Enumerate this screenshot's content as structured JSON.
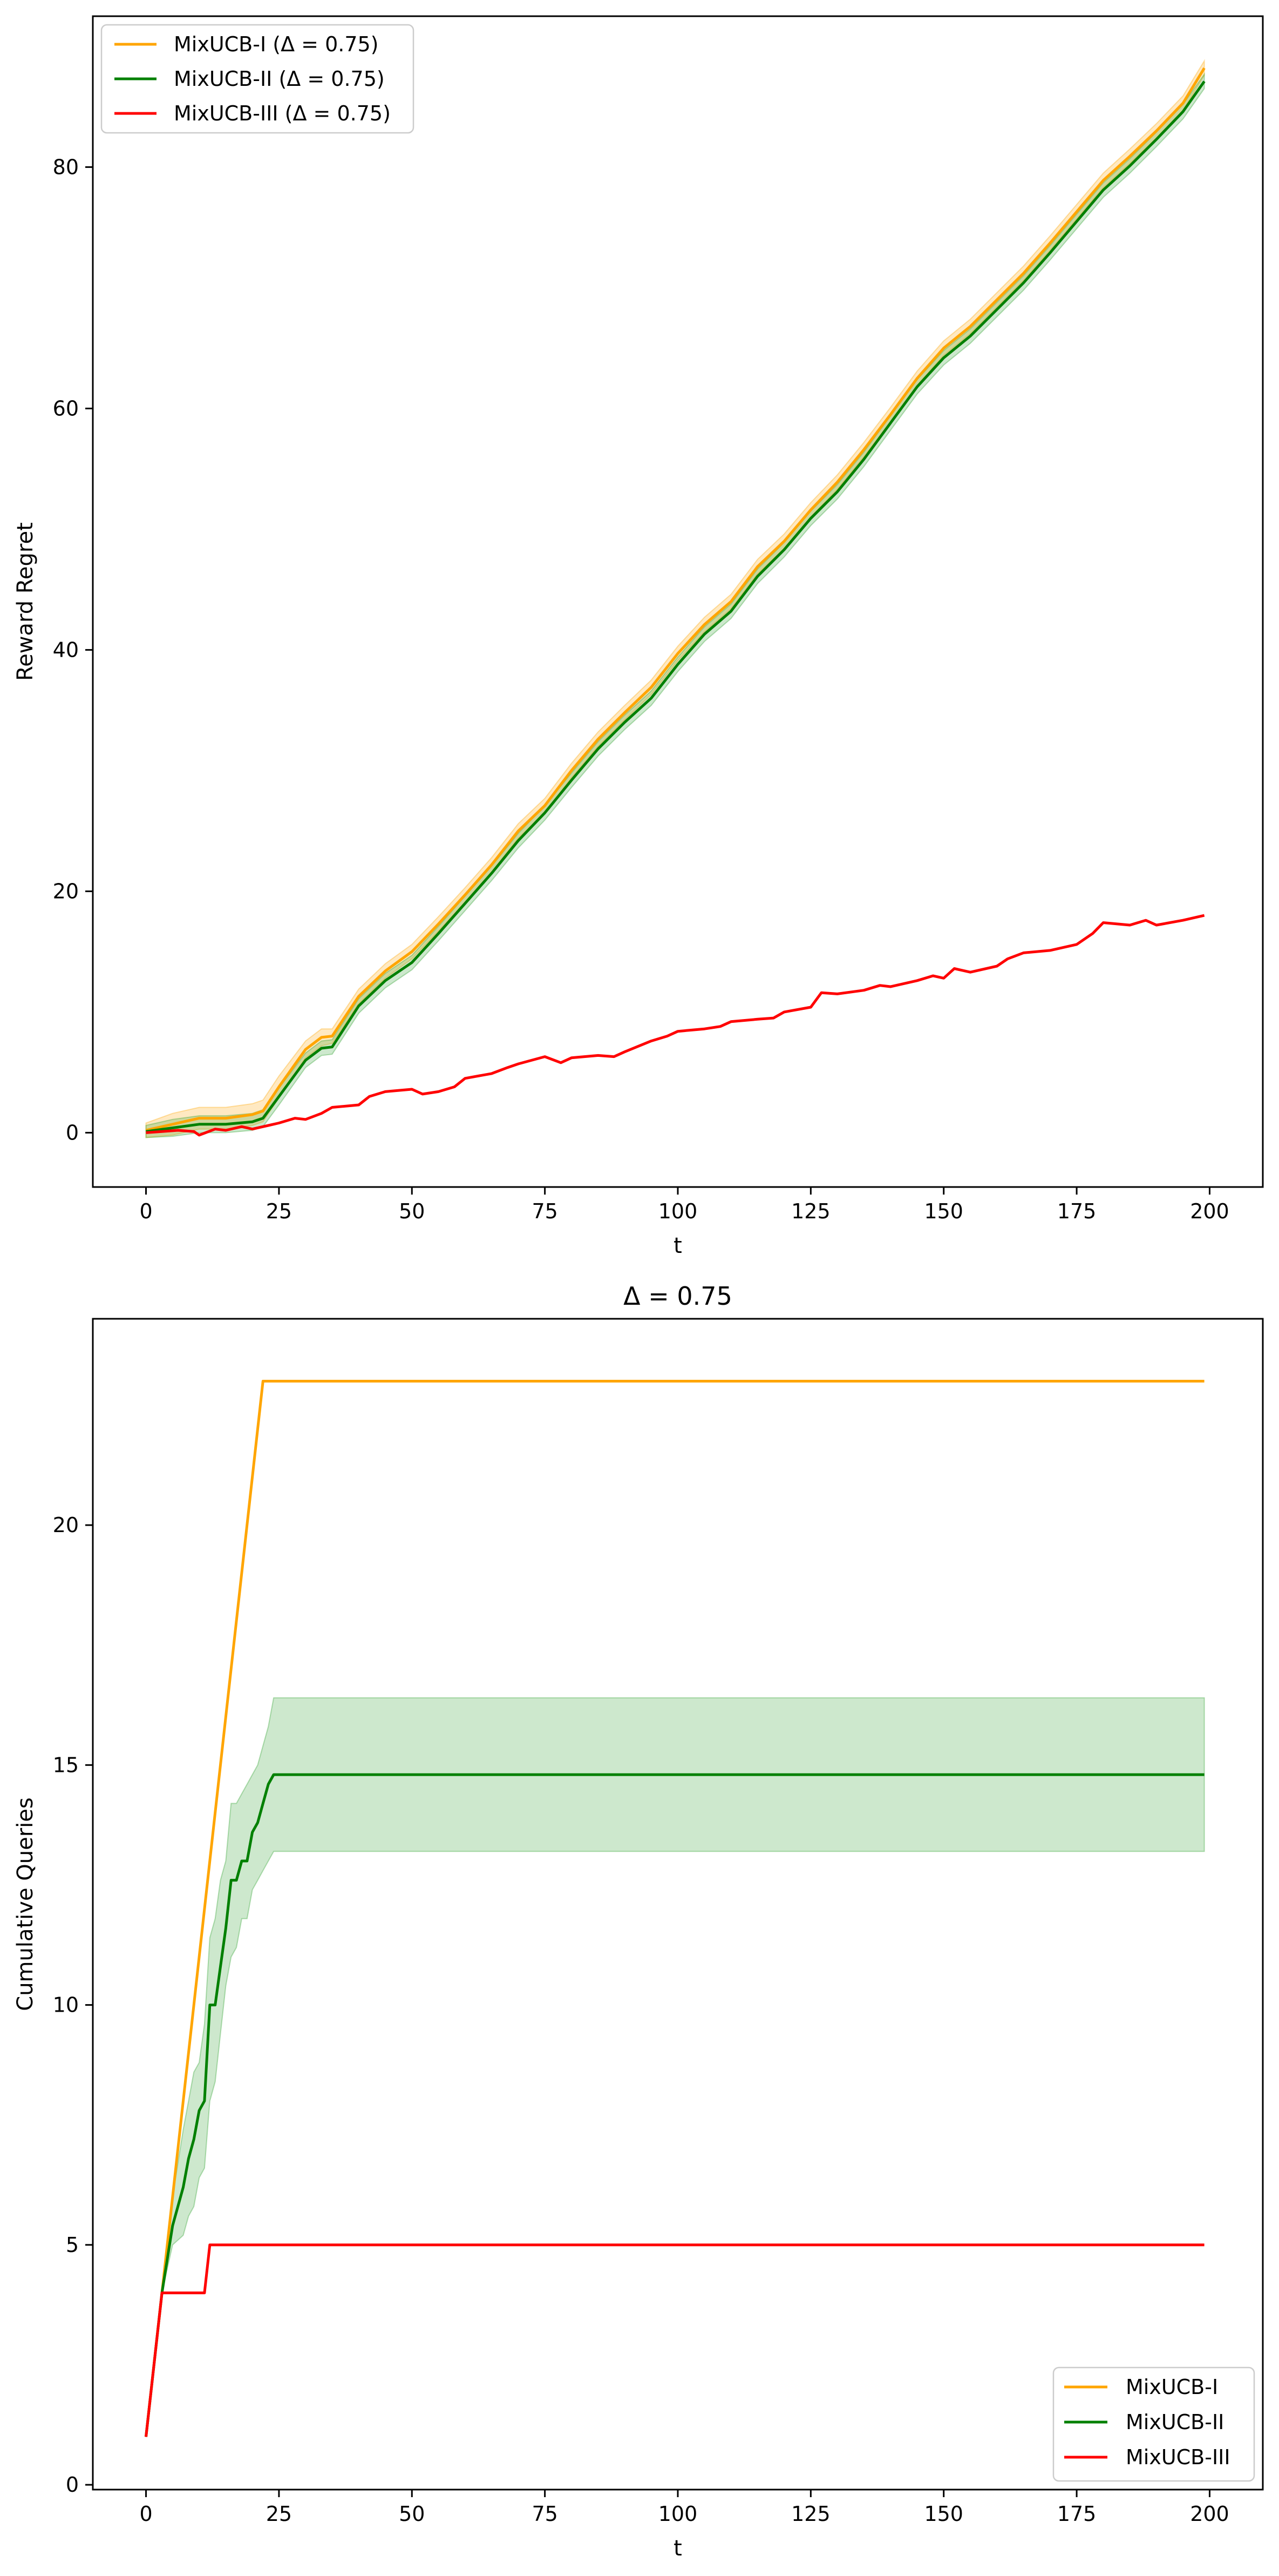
{
  "colors": {
    "MixUCB-I": "#ffa500",
    "MixUCB-II": "#008000",
    "MixUCB-III": "#ff0000",
    "band_I": "#ffa500",
    "band_II": "#2ca02c"
  },
  "chart_data": [
    {
      "type": "line",
      "title": "",
      "xlabel": "t",
      "ylabel": "Reward Regret",
      "xlim": [
        -10,
        210
      ],
      "ylim": [
        -4.5,
        92.5
      ],
      "xticks": [
        0,
        25,
        50,
        75,
        100,
        125,
        150,
        175,
        200
      ],
      "yticks": [
        0,
        20,
        40,
        60,
        80
      ],
      "grid": false,
      "legend": {
        "location": "upper left",
        "entries": [
          "MixUCB-I (Δ = 0.75)",
          "MixUCB-II (Δ = 0.75)",
          "MixUCB-III (Δ = 0.75)"
        ]
      },
      "series": [
        {
          "name": "MixUCB-I (Δ = 0.75)",
          "color_key": "MixUCB-I",
          "x": [
            0,
            5,
            10,
            15,
            20,
            22,
            25,
            30,
            33,
            35,
            40,
            45,
            50,
            55,
            60,
            65,
            70,
            75,
            80,
            85,
            90,
            95,
            100,
            105,
            110,
            115,
            120,
            125,
            130,
            135,
            140,
            145,
            150,
            155,
            160,
            165,
            170,
            175,
            180,
            185,
            190,
            195,
            199
          ],
          "y": [
            0.2,
            0.7,
            1.2,
            1.2,
            1.5,
            1.8,
            3.8,
            6.9,
            7.9,
            8.0,
            11.3,
            13.4,
            15.0,
            17.3,
            19.7,
            22.2,
            25.0,
            27.1,
            30.0,
            32.6,
            34.8,
            36.9,
            39.7,
            42.1,
            44.0,
            46.9,
            49.0,
            51.6,
            53.9,
            56.6,
            59.5,
            62.5,
            65.0,
            66.8,
            69.0,
            71.2,
            73.7,
            76.3,
            78.9,
            80.9,
            83.0,
            85.3,
            88.2
          ],
          "band": [
            0.6,
            0.9,
            0.9,
            0.9,
            0.9,
            0.9,
            0.9,
            0.7,
            0.7,
            0.6,
            0.6,
            0.6,
            0.6,
            0.6,
            0.6,
            0.6,
            0.6,
            0.6,
            0.6,
            0.6,
            0.6,
            0.6,
            0.6,
            0.6,
            0.6,
            0.6,
            0.6,
            0.6,
            0.6,
            0.6,
            0.6,
            0.6,
            0.6,
            0.6,
            0.6,
            0.6,
            0.6,
            0.6,
            0.6,
            0.6,
            0.6,
            0.6,
            0.6
          ]
        },
        {
          "name": "MixUCB-II (Δ = 0.75)",
          "color_key": "MixUCB-II",
          "x": [
            0,
            5,
            10,
            15,
            20,
            22,
            25,
            30,
            33,
            35,
            40,
            45,
            50,
            55,
            60,
            65,
            70,
            75,
            80,
            85,
            90,
            95,
            100,
            105,
            110,
            115,
            120,
            125,
            130,
            135,
            140,
            145,
            150,
            155,
            160,
            165,
            170,
            175,
            180,
            185,
            190,
            195,
            199
          ],
          "y": [
            0.1,
            0.4,
            0.7,
            0.7,
            0.9,
            1.2,
            3.0,
            6.0,
            7.0,
            7.1,
            10.5,
            12.6,
            14.1,
            16.5,
            19.0,
            21.5,
            24.2,
            26.5,
            29.2,
            31.8,
            34.0,
            36.0,
            38.8,
            41.3,
            43.2,
            46.1,
            48.3,
            50.9,
            53.1,
            55.8,
            58.8,
            61.8,
            64.2,
            66.0,
            68.2,
            70.4,
            72.9,
            75.5,
            78.1,
            80.1,
            82.3,
            84.6,
            87.1
          ],
          "band": [
            0.5,
            0.7,
            0.7,
            0.7,
            0.7,
            0.7,
            0.7,
            0.6,
            0.6,
            0.6,
            0.6,
            0.6,
            0.6,
            0.6,
            0.6,
            0.6,
            0.6,
            0.6,
            0.6,
            0.6,
            0.6,
            0.6,
            0.6,
            0.6,
            0.6,
            0.6,
            0.6,
            0.6,
            0.6,
            0.6,
            0.6,
            0.6,
            0.6,
            0.6,
            0.6,
            0.6,
            0.6,
            0.6,
            0.6,
            0.6,
            0.6,
            0.6,
            0.6
          ]
        },
        {
          "name": "MixUCB-III (Δ = 0.75)",
          "color_key": "MixUCB-III",
          "x": [
            0,
            3,
            6,
            9,
            10,
            13,
            15,
            18,
            20,
            23,
            25,
            28,
            30,
            33,
            35,
            40,
            42,
            45,
            50,
            52,
            55,
            58,
            60,
            65,
            68,
            70,
            75,
            78,
            80,
            85,
            88,
            90,
            95,
            98,
            100,
            105,
            108,
            110,
            115,
            118,
            120,
            125,
            127,
            130,
            135,
            138,
            140,
            145,
            148,
            150,
            152,
            155,
            160,
            162,
            165,
            170,
            175,
            178,
            180,
            185,
            188,
            190,
            195,
            199
          ],
          "y": [
            0.0,
            0.1,
            0.2,
            0.1,
            -0.2,
            0.3,
            0.2,
            0.5,
            0.3,
            0.6,
            0.8,
            1.2,
            1.1,
            1.6,
            2.1,
            2.3,
            3.0,
            3.4,
            3.6,
            3.2,
            3.4,
            3.8,
            4.5,
            4.9,
            5.4,
            5.7,
            6.3,
            5.8,
            6.2,
            6.4,
            6.3,
            6.7,
            7.6,
            8.0,
            8.4,
            8.6,
            8.8,
            9.2,
            9.4,
            9.5,
            10.0,
            10.4,
            11.6,
            11.5,
            11.8,
            12.2,
            12.1,
            12.6,
            13.0,
            12.8,
            13.6,
            13.3,
            13.8,
            14.4,
            14.9,
            15.1,
            15.6,
            16.5,
            17.4,
            17.2,
            17.6,
            17.2,
            17.6,
            18.0
          ],
          "band": null
        }
      ]
    },
    {
      "type": "line",
      "title": "Δ = 0.75",
      "xlabel": "t",
      "ylabel": "Cumulative Queries",
      "xlim": [
        -10,
        210
      ],
      "ylim": [
        -0.1,
        24.3
      ],
      "xticks": [
        0,
        25,
        50,
        75,
        100,
        125,
        150,
        175,
        200
      ],
      "yticks": [
        0,
        5,
        10,
        15,
        20
      ],
      "grid": false,
      "legend": {
        "location": "lower right",
        "entries": [
          "MixUCB-I",
          "MixUCB-II",
          "MixUCB-III"
        ]
      },
      "series": [
        {
          "name": "MixUCB-I",
          "color_key": "MixUCB-I",
          "x": [
            0,
            3,
            22,
            199
          ],
          "y": [
            1,
            4,
            23,
            23
          ],
          "lower": null,
          "upper": null
        },
        {
          "name": "MixUCB-II",
          "color_key": "MixUCB-II",
          "x": [
            0,
            3,
            5,
            7,
            8,
            9,
            10,
            11,
            12,
            13,
            14,
            15,
            16,
            17,
            18,
            19,
            20,
            21,
            22,
            23,
            24,
            199
          ],
          "y": [
            1,
            4,
            5.4,
            6.2,
            6.8,
            7.2,
            7.8,
            8.0,
            10.0,
            10.0,
            10.8,
            11.6,
            12.6,
            12.6,
            13.0,
            13.0,
            13.6,
            13.8,
            14.2,
            14.6,
            14.8,
            14.8
          ],
          "lower": [
            1,
            4,
            5.0,
            5.2,
            5.6,
            5.8,
            6.4,
            6.6,
            8.0,
            8.4,
            9.4,
            10.4,
            11.0,
            11.2,
            11.8,
            11.8,
            12.4,
            12.6,
            12.8,
            13.0,
            13.2,
            13.2
          ],
          "upper": [
            1,
            4,
            6.0,
            7.4,
            8.0,
            8.6,
            8.8,
            9.6,
            11.4,
            11.8,
            12.6,
            13.0,
            14.2,
            14.2,
            14.4,
            14.6,
            14.8,
            15.0,
            15.4,
            15.8,
            16.4,
            16.4
          ]
        },
        {
          "name": "MixUCB-III",
          "color_key": "MixUCB-III",
          "x": [
            0,
            3,
            11,
            12,
            199
          ],
          "y": [
            1,
            4,
            4,
            5,
            5
          ],
          "lower": null,
          "upper": null
        }
      ]
    }
  ]
}
